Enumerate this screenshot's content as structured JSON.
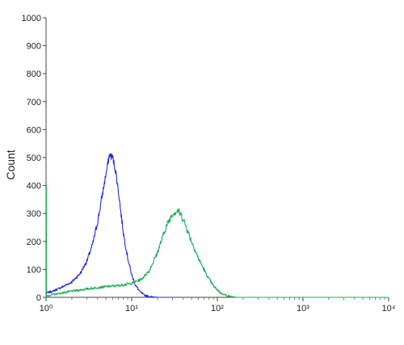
{
  "chart_data": {
    "type": "line",
    "title": "",
    "xlabel": "",
    "ylabel": "Count",
    "x_scale": "log",
    "xlim": [
      1,
      10000
    ],
    "ylim": [
      0,
      1000
    ],
    "x_ticks": [
      1,
      10,
      100,
      1000,
      10000
    ],
    "x_tick_labels": [
      "10⁰",
      "10¹",
      "10²",
      "10³",
      "10⁴"
    ],
    "y_ticks": [
      0,
      100,
      200,
      300,
      400,
      500,
      600,
      700,
      800,
      900,
      1000
    ],
    "y_tick_labels": [
      "0",
      "100",
      "200",
      "300",
      "400",
      "500",
      "600",
      "700",
      "800",
      "900",
      "1000"
    ],
    "grid": false,
    "series": [
      {
        "color": "#1f2fd6",
        "x": [
          1.0,
          1.2,
          1.5,
          2.0,
          2.5,
          3.0,
          3.5,
          4.0,
          4.5,
          5.0,
          5.5,
          6.0,
          6.5,
          7.0,
          7.5,
          8.0,
          9.0,
          10.0,
          11.0,
          12.5,
          14.0,
          16.0,
          20.0,
          30.0
        ],
        "y": [
          15,
          22,
          35,
          55,
          85,
          130,
          190,
          270,
          360,
          440,
          510,
          500,
          450,
          380,
          300,
          230,
          140,
          80,
          45,
          20,
          8,
          3,
          0,
          0
        ]
      },
      {
        "color": "#1fae58",
        "x": [
          1.0,
          1.5,
          2.0,
          3.0,
          4.0,
          5.0,
          7.0,
          10.0,
          13.0,
          16.0,
          20.0,
          25.0,
          30.0,
          35.0,
          40.0,
          50.0,
          60.0,
          75.0,
          90.0,
          110.0,
          130.0,
          150.0,
          170.0,
          200.0,
          10000.0
        ],
        "y": [
          5,
          15,
          22,
          30,
          35,
          38,
          42,
          50,
          65,
          95,
          160,
          250,
          300,
          310,
          280,
          200,
          140,
          80,
          40,
          15,
          6,
          2,
          0,
          0,
          0
        ]
      }
    ]
  }
}
